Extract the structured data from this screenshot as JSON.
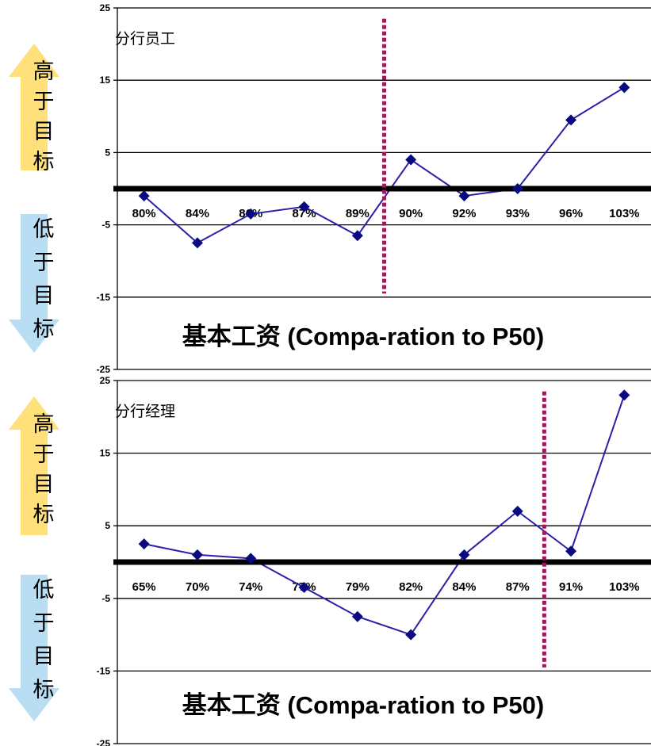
{
  "arrows": {
    "up_label": [
      "高",
      "于",
      "目",
      "标"
    ],
    "down_label": [
      "低",
      "于",
      "目",
      "标"
    ],
    "up_color": "#FFE07A",
    "down_color": "#B9DDF2"
  },
  "colors": {
    "line": "#2A20A8",
    "marker": "#0A0A80",
    "zero_line": "#000000",
    "marker_line": "#A0185A",
    "grid": "#000000"
  },
  "chart_data": [
    {
      "type": "line",
      "title": "分行员工",
      "xlabel": "基本工资 (Compa-ration to P50)",
      "ylabel": "",
      "ylim": [
        -25,
        25
      ],
      "yticks": [
        25,
        15,
        5,
        -5,
        -15,
        -25
      ],
      "categories": [
        "80%",
        "84%",
        "86%",
        "87%",
        "89%",
        "90%",
        "92%",
        "93%",
        "96%",
        "103%"
      ],
      "values": [
        -1,
        -7.5,
        -3.5,
        -2.5,
        -6.5,
        4,
        -1,
        0,
        9.5,
        14
      ],
      "reference_line_after_category": "89%",
      "grid": true
    },
    {
      "type": "line",
      "title": "分行经理",
      "xlabel": "基本工资 (Compa-ration to P50)",
      "ylabel": "",
      "ylim": [
        -25,
        25
      ],
      "yticks": [
        25,
        15,
        5,
        -5,
        -15,
        -25
      ],
      "categories": [
        "65%",
        "70%",
        "74%",
        "77%",
        "79%",
        "82%",
        "84%",
        "87%",
        "91%",
        "103%"
      ],
      "values": [
        2.5,
        1,
        0.5,
        -3.5,
        -7.5,
        -10,
        1,
        7,
        1.5,
        23
      ],
      "reference_line_after_category": "87%",
      "grid": true
    }
  ]
}
